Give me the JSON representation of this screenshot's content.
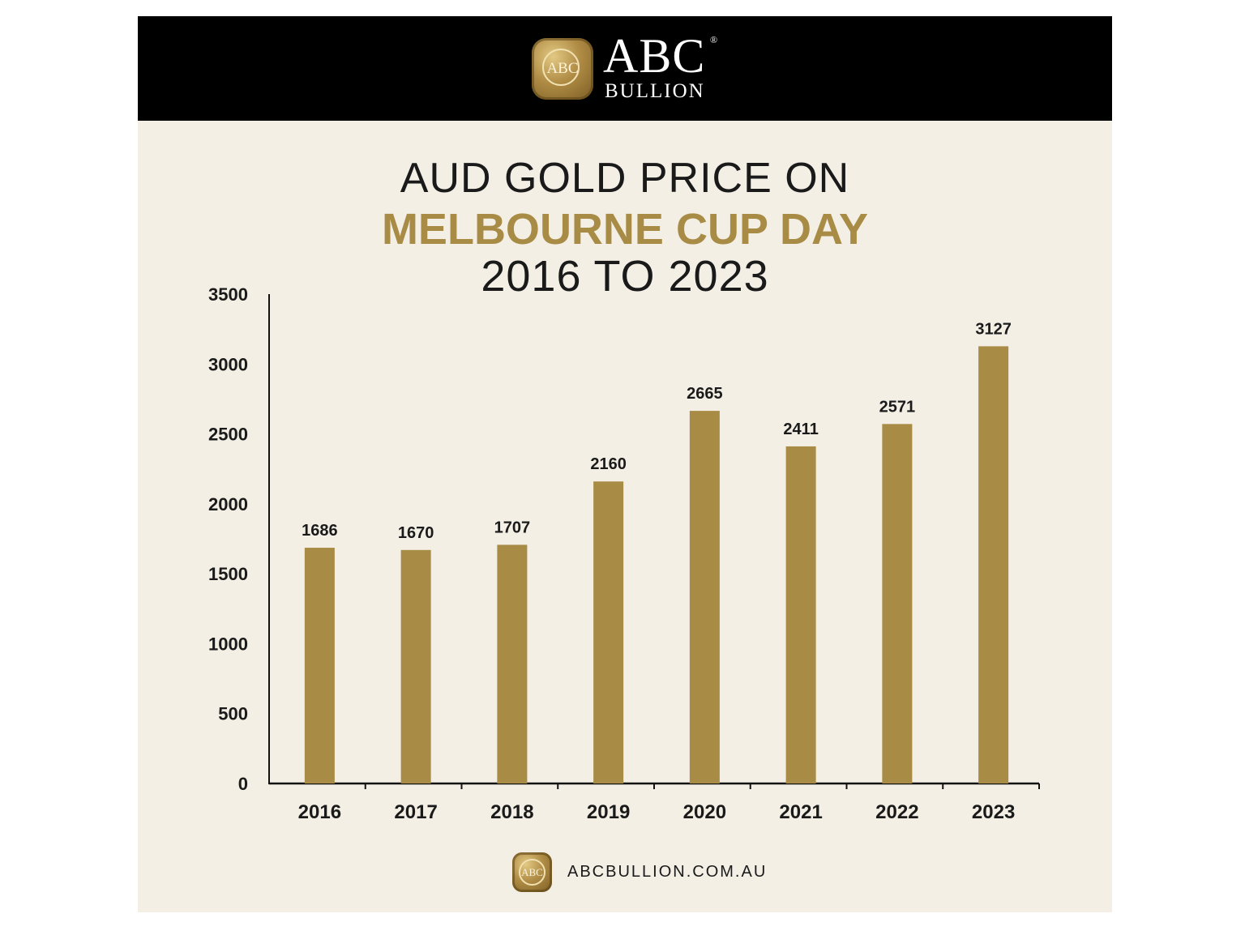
{
  "brand": {
    "badge_text": "ABC",
    "name": "ABC",
    "registered": "®",
    "sub": "BULLION"
  },
  "titles": {
    "line1": "AUD GOLD PRICE ON",
    "line2": "MELBOURNE CUP DAY",
    "line3": "2016 TO 2023"
  },
  "footer": {
    "badge_text": "ABC",
    "url": "ABCBULLION.COM.AU"
  },
  "colors": {
    "bar": "#a88b45",
    "background": "#f3efe5",
    "header": "#000000",
    "text": "#1a1a1a"
  },
  "chart_data": {
    "type": "bar",
    "title": "AUD GOLD PRICE ON MELBOURNE CUP DAY 2016 TO 2023",
    "categories": [
      "2016",
      "2017",
      "2018",
      "2019",
      "2020",
      "2021",
      "2022",
      "2023"
    ],
    "values": [
      1686,
      1670,
      1707,
      2160,
      2665,
      2411,
      2571,
      3127
    ],
    "ylim": [
      0,
      3500
    ],
    "yticks": [
      0,
      500,
      1000,
      1500,
      2000,
      2500,
      3000,
      3500
    ],
    "xlabel": "",
    "ylabel": "",
    "grid": false,
    "legend": "none",
    "data_labels": true
  }
}
